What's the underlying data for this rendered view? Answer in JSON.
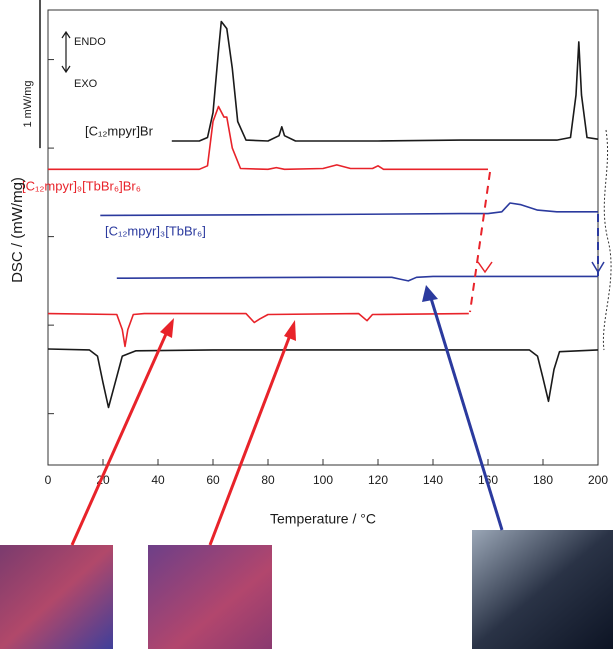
{
  "chart_data": {
    "type": "line",
    "x_label": "Temperature / °C",
    "y_label": "DSC / (mW/mg)",
    "endo_label": "ENDO",
    "exo_label": "EXO",
    "scale_bar": {
      "value": 1,
      "label": "1 mW/mg"
    },
    "xlim": [
      0,
      200
    ],
    "xticks": [
      0,
      20,
      40,
      60,
      80,
      100,
      120,
      140,
      160,
      180,
      200
    ],
    "ylim": [
      -0.58,
      4.56
    ],
    "yticks": [
      0,
      1,
      2,
      3,
      4
    ],
    "series": [
      {
        "name": "[C₁₂mpyr]Br",
        "color": "#1a1a1a",
        "x": [
          45,
          55,
          58,
          60,
          62,
          63,
          65,
          67,
          69,
          72,
          80,
          84,
          85,
          86,
          90,
          120,
          150,
          185,
          190,
          192,
          193,
          194,
          196,
          200
        ],
        "values": [
          3.08,
          3.08,
          3.12,
          3.4,
          4.1,
          4.43,
          4.35,
          3.9,
          3.3,
          3.09,
          3.08,
          3.14,
          3.24,
          3.14,
          3.08,
          3.08,
          3.09,
          3.09,
          3.12,
          3.6,
          4.2,
          3.6,
          3.12,
          3.1
        ]
      },
      {
        "name": "[C₁₂mpyr]₉[TbBr₆]Br₆",
        "color": "#e8232a",
        "x": [
          0,
          40,
          55,
          58,
          60,
          62,
          64,
          65,
          67,
          70,
          80,
          83,
          86,
          100,
          105,
          110,
          118,
          120,
          122,
          160
        ],
        "values": [
          2.76,
          2.76,
          2.76,
          2.8,
          3.3,
          3.47,
          3.35,
          3.35,
          3.0,
          2.77,
          2.76,
          2.78,
          2.76,
          2.77,
          2.81,
          2.77,
          2.77,
          2.8,
          2.76,
          2.76
        ]
      },
      {
        "name": "[C₁₂mpyr]₃[TbBr₆]",
        "color": "#2b3a9e",
        "x": [
          19,
          100,
          150,
          160,
          165,
          168,
          172,
          178,
          185,
          200
        ],
        "values": [
          2.24,
          2.25,
          2.26,
          2.26,
          2.28,
          2.38,
          2.36,
          2.3,
          2.28,
          2.28
        ]
      },
      {
        "color": "#2b3a9e",
        "x": [
          25,
          100,
          125,
          128,
          131,
          134,
          140,
          200
        ],
        "values": [
          1.53,
          1.54,
          1.54,
          1.52,
          1.5,
          1.54,
          1.55,
          1.55
        ]
      },
      {
        "color": "#e8232a",
        "x": [
          0,
          25,
          27,
          28,
          29,
          31,
          35,
          72,
          75,
          77,
          80,
          113,
          116,
          118,
          153
        ],
        "values": [
          1.13,
          1.12,
          0.95,
          0.76,
          0.95,
          1.12,
          1.13,
          1.13,
          1.03,
          1.07,
          1.12,
          1.13,
          1.05,
          1.12,
          1.13
        ]
      },
      {
        "color": "#1a1a1a",
        "x": [
          0,
          15,
          18,
          20,
          22,
          24,
          27,
          32,
          60,
          120,
          175,
          178,
          180,
          182,
          184,
          186,
          200
        ],
        "values": [
          0.73,
          0.72,
          0.65,
          0.35,
          0.07,
          0.3,
          0.65,
          0.71,
          0.72,
          0.72,
          0.72,
          0.65,
          0.4,
          0.14,
          0.5,
          0.7,
          0.72
        ]
      }
    ]
  }
}
